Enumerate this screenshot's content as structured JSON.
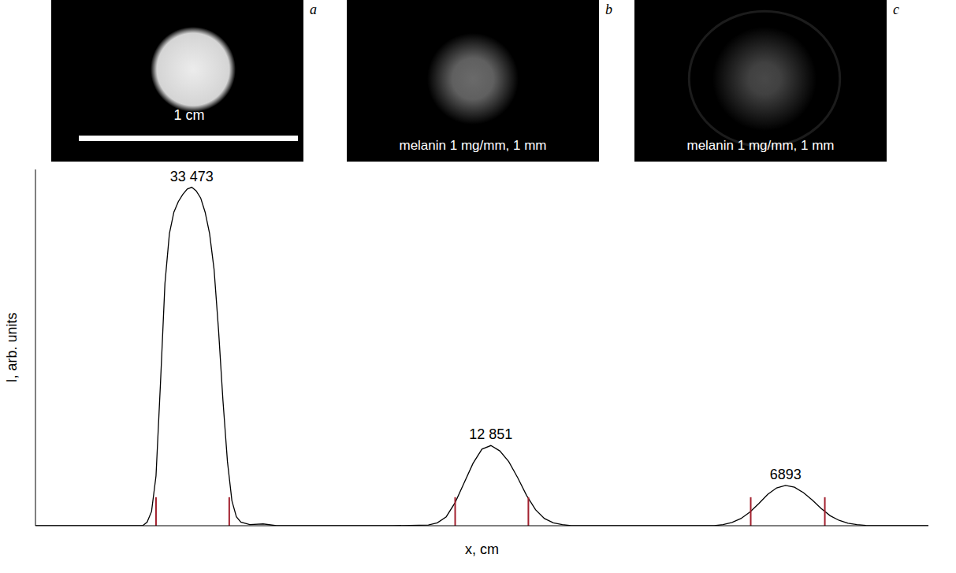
{
  "panels": [
    {
      "letter": "a",
      "caption": "1 cm"
    },
    {
      "letter": "b",
      "caption": "melanin 1 mg/mm, 1 mm"
    },
    {
      "letter": "c",
      "caption": "melanin 1 mg/mm, 1 mm"
    }
  ],
  "chart_data": {
    "type": "line",
    "xlabel": "x, cm",
    "ylabel": "I, arb. units",
    "x": [
      0,
      10,
      12,
      12.5,
      13,
      13.5,
      14,
      14.5,
      15,
      15.5,
      16,
      16.5,
      17,
      17.5,
      18,
      18.5,
      19,
      19.5,
      20,
      20.5,
      21,
      21.5,
      22,
      22.5,
      23,
      24,
      25.5,
      27,
      40,
      44,
      45,
      46,
      47,
      48,
      49,
      50,
      51,
      52,
      53,
      54,
      55,
      56,
      57,
      58,
      59,
      60,
      70,
      76,
      77,
      78,
      79,
      80,
      81,
      82,
      83,
      84,
      85,
      86,
      87,
      88,
      89,
      90,
      91,
      92,
      93,
      100
    ],
    "values": [
      0,
      0,
      0,
      1,
      4,
      14,
      40,
      68,
      82,
      88,
      91,
      93,
      94.5,
      95,
      94,
      92,
      88,
      82,
      72,
      55,
      35,
      18,
      7,
      2.5,
      1,
      0.3,
      0.5,
      0,
      0,
      0.2,
      0.8,
      2.5,
      6.5,
      12,
      17.5,
      21.5,
      22.5,
      21,
      18,
      13.5,
      8.5,
      4.5,
      2,
      0.8,
      0.3,
      0,
      0,
      0,
      0.3,
      0.9,
      2,
      3.8,
      6.2,
      8.8,
      10.6,
      11.3,
      10.8,
      9.3,
      7.2,
      4.8,
      2.8,
      1.5,
      0.7,
      0.3,
      0.1,
      0
    ],
    "color": "#000000",
    "xlim": [
      0,
      100
    ],
    "ylim": [
      0,
      100
    ],
    "xticks": [],
    "yticks": [],
    "tick_labels": false,
    "grid": false,
    "annotations": [
      {
        "x": 17.5,
        "y": 95,
        "value": 33473,
        "label": "33 473"
      },
      {
        "x": 51,
        "y": 22.5,
        "value": 12851,
        "label": "12 851"
      },
      {
        "x": 84,
        "y": 11.3,
        "value": 6893,
        "label": "6893"
      }
    ],
    "width_markers": {
      "x": [
        13.5,
        21.7,
        47.0,
        55.2,
        80.1,
        88.4
      ],
      "height": 8,
      "color": "#a3202e"
    }
  }
}
